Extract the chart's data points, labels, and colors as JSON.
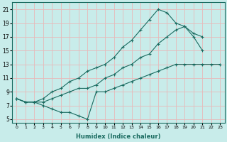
{
  "xlabel": "Humidex (Indice chaleur)",
  "bg_color": "#c8ecea",
  "grid_color": "#e8b8b8",
  "line_color": "#1a6b60",
  "xlim": [
    -0.5,
    23.5
  ],
  "ylim": [
    4.5,
    22
  ],
  "xticks": [
    0,
    1,
    2,
    3,
    4,
    5,
    6,
    7,
    8,
    9,
    10,
    11,
    12,
    13,
    14,
    15,
    16,
    17,
    18,
    19,
    20,
    21,
    22,
    23
  ],
  "yticks": [
    5,
    7,
    9,
    11,
    13,
    15,
    17,
    19,
    21
  ],
  "line1_x": [
    0,
    1,
    2,
    3,
    4,
    5,
    6,
    7,
    8,
    9,
    10,
    11,
    12,
    13,
    14,
    15,
    16,
    17,
    18,
    19,
    20,
    21,
    22,
    23
  ],
  "line1_y": [
    8,
    7.5,
    7.5,
    7.0,
    6.5,
    6.0,
    6.0,
    5.5,
    5.0,
    9.0,
    9.0,
    9.5,
    10.0,
    10.5,
    11.0,
    11.5,
    12.0,
    12.5,
    13.0,
    13.0,
    13.0,
    13.0,
    13.0,
    13.0
  ],
  "line2_x": [
    0,
    1,
    2,
    3,
    4,
    5,
    6,
    7,
    8,
    9,
    10,
    11,
    12,
    13,
    14,
    15,
    16,
    17,
    18,
    19,
    20,
    21
  ],
  "line2_y": [
    8,
    7.5,
    7.5,
    7.5,
    8.0,
    8.5,
    9.0,
    9.5,
    9.5,
    10.0,
    11.0,
    11.5,
    12.5,
    13.0,
    14.0,
    14.5,
    16.0,
    17.0,
    18.0,
    18.5,
    17.5,
    17.0
  ],
  "line3_x": [
    0,
    1,
    2,
    3,
    4,
    5,
    6,
    7,
    8,
    9,
    10,
    11,
    12,
    13,
    14,
    15,
    16,
    17,
    18,
    19,
    20,
    21
  ],
  "line3_y": [
    8,
    7.5,
    7.5,
    8.0,
    9.0,
    9.5,
    10.5,
    11.0,
    12.0,
    12.5,
    13.0,
    14.0,
    15.5,
    16.5,
    18.0,
    19.5,
    21.0,
    20.5,
    19.0,
    18.5,
    17.0,
    15.0
  ]
}
